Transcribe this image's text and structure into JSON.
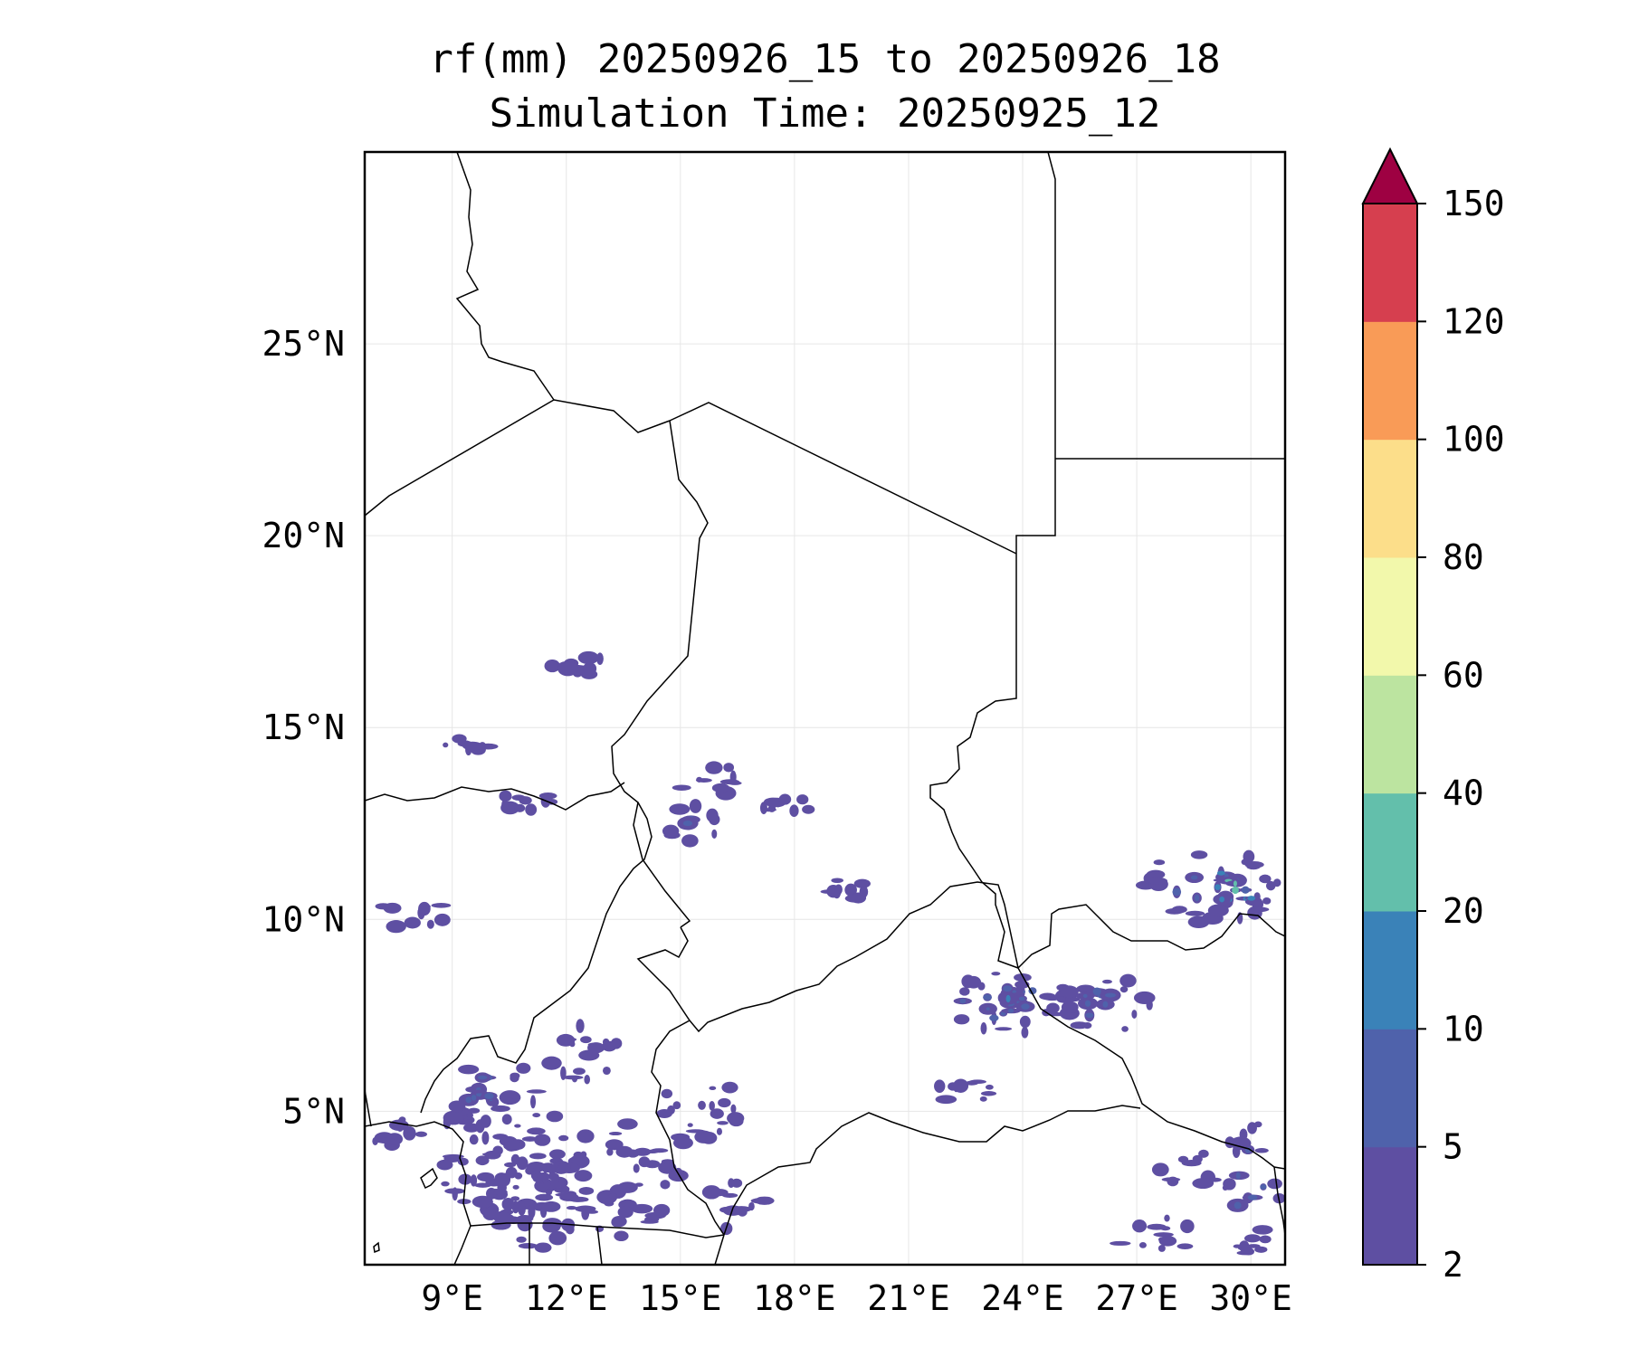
{
  "title": {
    "line1": "rf(mm) 20250926_15 to 20250926_18",
    "line2": "Simulation Time: 20250925_12"
  },
  "map": {
    "lon_range": [
      6.7,
      30.9
    ],
    "lat_range": [
      1.0,
      30.0
    ],
    "lon_ticks": [
      {
        "value": 9,
        "label": "9°E"
      },
      {
        "value": 12,
        "label": "12°E"
      },
      {
        "value": 15,
        "label": "15°E"
      },
      {
        "value": 18,
        "label": "18°E"
      },
      {
        "value": 21,
        "label": "21°E"
      },
      {
        "value": 24,
        "label": "24°E"
      },
      {
        "value": 27,
        "label": "27°E"
      },
      {
        "value": 30,
        "label": "30°E"
      }
    ],
    "lat_ticks": [
      {
        "value": 5,
        "label": "5°N"
      },
      {
        "value": 10,
        "label": "10°N"
      },
      {
        "value": 15,
        "label": "15°N"
      },
      {
        "value": 20,
        "label": "20°N"
      },
      {
        "value": 25,
        "label": "25°N"
      }
    ],
    "gridlines": true,
    "rain_regions": [
      {
        "lon": 10.2,
        "lat": 4.3,
        "rx": 1.8,
        "ry": 2.0,
        "level": 1
      },
      {
        "lon": 9.8,
        "lat": 5.5,
        "rx": 0.9,
        "ry": 0.8,
        "level": 2
      },
      {
        "lon": 11.2,
        "lat": 3.0,
        "rx": 1.5,
        "ry": 1.6,
        "level": 1
      },
      {
        "lon": 13.5,
        "lat": 3.2,
        "rx": 1.6,
        "ry": 1.5,
        "level": 1
      },
      {
        "lon": 12.5,
        "lat": 6.5,
        "rx": 1.0,
        "ry": 0.9,
        "level": 1
      },
      {
        "lon": 15.5,
        "lat": 5.0,
        "rx": 1.2,
        "ry": 0.9,
        "level": 1
      },
      {
        "lon": 16.5,
        "lat": 2.5,
        "rx": 0.8,
        "ry": 0.8,
        "level": 1
      },
      {
        "lon": 8.0,
        "lat": 10.2,
        "rx": 1.0,
        "ry": 0.5,
        "level": 1
      },
      {
        "lon": 7.5,
        "lat": 4.4,
        "rx": 0.8,
        "ry": 0.4,
        "level": 1
      },
      {
        "lon": 15.3,
        "lat": 12.5,
        "rx": 0.9,
        "ry": 0.5,
        "level": 2
      },
      {
        "lon": 15.8,
        "lat": 13.6,
        "rx": 1.0,
        "ry": 0.5,
        "level": 1
      },
      {
        "lon": 17.8,
        "lat": 12.9,
        "rx": 0.7,
        "ry": 0.3,
        "level": 1
      },
      {
        "lon": 11.1,
        "lat": 13.1,
        "rx": 0.8,
        "ry": 0.3,
        "level": 1
      },
      {
        "lon": 9.4,
        "lat": 14.6,
        "rx": 0.8,
        "ry": 0.2,
        "level": 1
      },
      {
        "lon": 12.4,
        "lat": 16.6,
        "rx": 0.8,
        "ry": 0.25,
        "level": 1
      },
      {
        "lon": 23.5,
        "lat": 7.8,
        "rx": 2.0,
        "ry": 0.8,
        "level": 2
      },
      {
        "lon": 23.5,
        "lat": 7.8,
        "rx": 0.6,
        "ry": 0.3,
        "level": 3
      },
      {
        "lon": 26.2,
        "lat": 7.7,
        "rx": 1.3,
        "ry": 0.8,
        "level": 2
      },
      {
        "lon": 29.0,
        "lat": 10.9,
        "rx": 1.8,
        "ry": 1.0,
        "level": 2
      },
      {
        "lon": 29.6,
        "lat": 10.9,
        "rx": 0.6,
        "ry": 0.5,
        "level": 4
      },
      {
        "lon": 30.0,
        "lat": 3.0,
        "rx": 0.8,
        "ry": 1.8,
        "level": 2
      },
      {
        "lon": 28.5,
        "lat": 3.5,
        "rx": 0.9,
        "ry": 0.5,
        "level": 1
      },
      {
        "lon": 22.6,
        "lat": 5.6,
        "rx": 0.9,
        "ry": 0.5,
        "level": 1
      },
      {
        "lon": 27.5,
        "lat": 1.8,
        "rx": 1.2,
        "ry": 0.5,
        "level": 1
      },
      {
        "lon": 19.4,
        "lat": 10.9,
        "rx": 0.6,
        "ry": 0.4,
        "level": 1
      }
    ]
  },
  "colorbar": {
    "levels": [
      2,
      5,
      10,
      20,
      40,
      60,
      80,
      100,
      120,
      150
    ],
    "labels": [
      "2",
      "5",
      "10",
      "20",
      "40",
      "60",
      "80",
      "100",
      "120",
      "150"
    ],
    "colors": [
      "#5e4fa2",
      "#4f62ab",
      "#3a82b8",
      "#63bfab",
      "#bce4a0",
      "#f2f8ab",
      "#fcde8a",
      "#f99b57",
      "#d63f4f"
    ],
    "extend_color": "#9e0142",
    "extend": "max"
  }
}
